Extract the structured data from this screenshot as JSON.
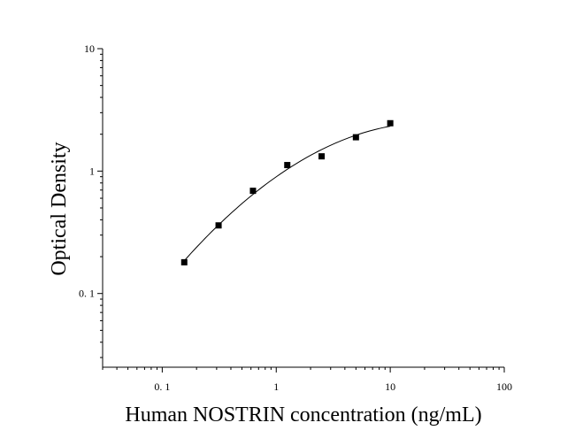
{
  "chart_data": {
    "type": "scatter",
    "xlabel": "Human NOSTRIN concentration (ng/mL)",
    "ylabel": "Optical Density",
    "x_scale": "log",
    "y_scale": "log",
    "xlim": [
      0.03,
      100
    ],
    "ylim": [
      0.025,
      10
    ],
    "x_ticks": [
      {
        "value": 0.1,
        "label": "0. 1"
      },
      {
        "value": 1,
        "label": "1"
      },
      {
        "value": 10,
        "label": "10"
      },
      {
        "value": 100,
        "label": "100"
      }
    ],
    "y_ticks": [
      {
        "value": 0.1,
        "label": "0. 1"
      },
      {
        "value": 1,
        "label": "1"
      },
      {
        "value": 10,
        "label": "10"
      }
    ],
    "points": [
      {
        "x": 0.156,
        "y": 0.18
      },
      {
        "x": 0.312,
        "y": 0.36
      },
      {
        "x": 0.625,
        "y": 0.69
      },
      {
        "x": 1.25,
        "y": 1.12
      },
      {
        "x": 2.5,
        "y": 1.32
      },
      {
        "x": 5,
        "y": 1.89
      },
      {
        "x": 10,
        "y": 2.46
      }
    ],
    "fit_curve": true,
    "grid": false,
    "legend": false,
    "colors": {
      "marker": "#000000",
      "line": "#000000",
      "axis": "#000000"
    }
  }
}
